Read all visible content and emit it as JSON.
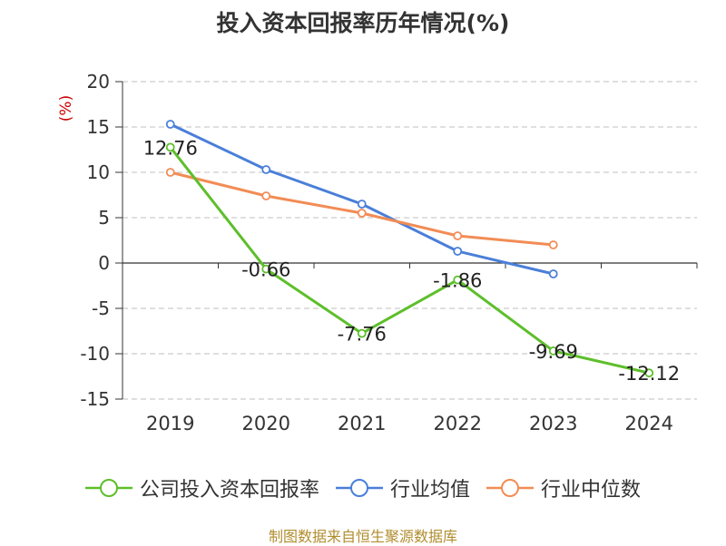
{
  "title": "投入资本回报率历年情况(%)",
  "source": "制图数据来自恒生聚源数据库",
  "chart_data": {
    "type": "line",
    "title": "投入资本回报率历年情况(%)",
    "ylabel": "(%)",
    "xlabel": "",
    "categories": [
      "2019",
      "2020",
      "2021",
      "2022",
      "2023",
      "2024"
    ],
    "ylim": [
      -15,
      20
    ],
    "yticks": [
      20,
      15,
      10,
      5,
      0,
      -5,
      -10,
      -15
    ],
    "grid": true,
    "legend_position": "bottom",
    "series": [
      {
        "name": "公司投入资本回报率",
        "color": "#5dbf2a",
        "values": [
          12.76,
          -0.66,
          -7.76,
          -1.86,
          -9.69,
          -12.12
        ],
        "labels": [
          "12.76",
          "-0.66",
          "-7.76",
          "-1.86",
          "-9.69",
          "-12.12"
        ]
      },
      {
        "name": "行业均值",
        "color": "#4a7fd9",
        "values": [
          15.3,
          10.3,
          6.5,
          1.3,
          -1.2,
          null
        ]
      },
      {
        "name": "行业中位数",
        "color": "#f28c55",
        "values": [
          10.0,
          7.4,
          5.5,
          3.0,
          2.0,
          null
        ]
      }
    ]
  }
}
